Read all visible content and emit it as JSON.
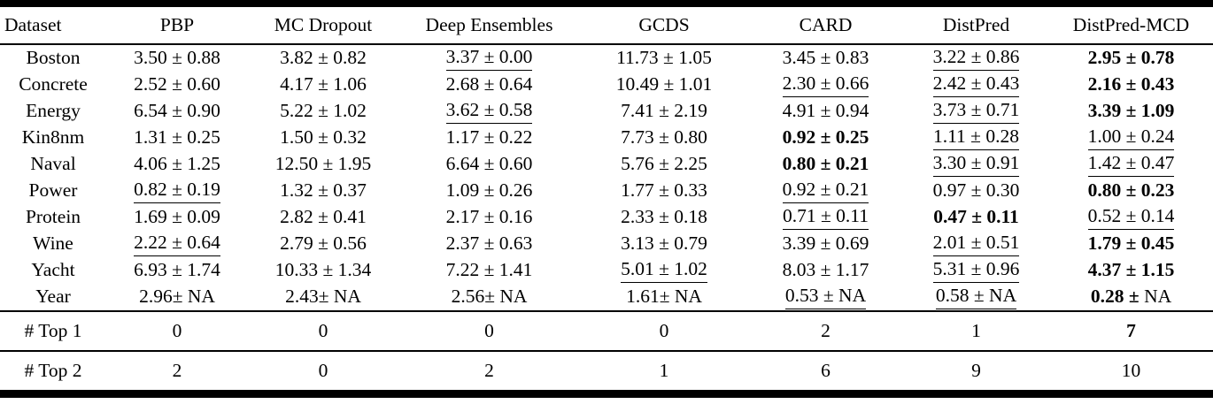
{
  "table": {
    "columns": [
      "Dataset",
      "PBP",
      "MC Dropout",
      "Deep Ensembles",
      "GCDS",
      "CARD",
      "DistPred",
      "DistPred-MCD"
    ],
    "rows": [
      {
        "dataset": "Boston",
        "cells": [
          {
            "t": "3.50 ± 0.88"
          },
          {
            "t": "3.82 ± 0.82"
          },
          {
            "t": "3.37 ± 0.00",
            "s": "u"
          },
          {
            "t": "11.73 ± 1.05"
          },
          {
            "t": "3.45 ± 0.83"
          },
          {
            "t": "3.22 ± 0.86",
            "s": "u"
          },
          {
            "t": "2.95 ± 0.78",
            "s": "b"
          }
        ]
      },
      {
        "dataset": "Concrete",
        "cells": [
          {
            "t": "2.52 ± 0.60"
          },
          {
            "t": "4.17 ± 1.06"
          },
          {
            "t": "2.68 ± 0.64"
          },
          {
            "t": "10.49 ± 1.01"
          },
          {
            "t": "2.30 ± 0.66",
            "s": "u"
          },
          {
            "t": "2.42 ± 0.43",
            "s": "u"
          },
          {
            "t": "2.16 ± 0.43",
            "s": "b"
          }
        ]
      },
      {
        "dataset": "Energy",
        "cells": [
          {
            "t": "6.54 ± 0.90"
          },
          {
            "t": "5.22 ± 1.02"
          },
          {
            "t": "3.62 ± 0.58",
            "s": "u"
          },
          {
            "t": "7.41 ± 2.19"
          },
          {
            "t": "4.91 ± 0.94"
          },
          {
            "t": "3.73 ± 0.71",
            "s": "u"
          },
          {
            "t": "3.39 ± 1.09",
            "s": "b"
          }
        ]
      },
      {
        "dataset": "Kin8nm",
        "cells": [
          {
            "t": "1.31 ± 0.25"
          },
          {
            "t": "1.50 ± 0.32"
          },
          {
            "t": "1.17 ± 0.22"
          },
          {
            "t": "7.73 ± 0.80"
          },
          {
            "t": "0.92 ± 0.25",
            "s": "b"
          },
          {
            "t": "1.11 ± 0.28",
            "s": "u"
          },
          {
            "t": "1.00 ± 0.24",
            "s": "u"
          }
        ]
      },
      {
        "dataset": "Naval",
        "cells": [
          {
            "t": "4.06 ± 1.25"
          },
          {
            "t": "12.50 ± 1.95"
          },
          {
            "t": "6.64 ± 0.60"
          },
          {
            "t": "5.76 ± 2.25"
          },
          {
            "t": "0.80 ± 0.21",
            "s": "b"
          },
          {
            "t": "3.30 ± 0.91",
            "s": "u"
          },
          {
            "t": "1.42 ± 0.47",
            "s": "u"
          }
        ]
      },
      {
        "dataset": "Power",
        "cells": [
          {
            "t": "0.82 ± 0.19",
            "s": "u"
          },
          {
            "t": "1.32 ± 0.37"
          },
          {
            "t": "1.09 ± 0.26"
          },
          {
            "t": "1.77 ± 0.33"
          },
          {
            "t": "0.92 ± 0.21",
            "s": "u"
          },
          {
            "t": "0.97 ± 0.30"
          },
          {
            "t": "0.80 ± 0.23",
            "s": "b"
          }
        ]
      },
      {
        "dataset": "Protein",
        "cells": [
          {
            "t": "1.69 ± 0.09"
          },
          {
            "t": "2.82 ± 0.41"
          },
          {
            "t": "2.17 ± 0.16"
          },
          {
            "t": "2.33 ± 0.18"
          },
          {
            "t": "0.71 ± 0.11",
            "s": "u"
          },
          {
            "t": "0.47 ± 0.11",
            "s": "b"
          },
          {
            "t": "0.52 ± 0.14",
            "s": "u"
          }
        ]
      },
      {
        "dataset": "Wine",
        "cells": [
          {
            "t": "2.22 ± 0.64",
            "s": "u"
          },
          {
            "t": "2.79 ± 0.56"
          },
          {
            "t": "2.37 ± 0.63"
          },
          {
            "t": "3.13 ± 0.79"
          },
          {
            "t": "3.39 ± 0.69"
          },
          {
            "t": "2.01 ± 0.51",
            "s": "u"
          },
          {
            "t": "1.79 ± 0.45",
            "s": "b"
          }
        ]
      },
      {
        "dataset": "Yacht",
        "cells": [
          {
            "t": "6.93 ± 1.74"
          },
          {
            "t": "10.33 ± 1.34"
          },
          {
            "t": "7.22 ± 1.41"
          },
          {
            "t": "5.01 ± 1.02",
            "s": "u"
          },
          {
            "t": "8.03 ± 1.17"
          },
          {
            "t": "5.31 ± 0.96",
            "s": "u"
          },
          {
            "t": "4.37 ± 1.15",
            "s": "b"
          }
        ]
      },
      {
        "dataset": "Year",
        "cells": [
          {
            "t": "2.96± NA"
          },
          {
            "t": "2.43± NA"
          },
          {
            "t": "2.56± NA"
          },
          {
            "t": "1.61± NA"
          },
          {
            "t": "0.53 ± NA",
            "s": "u"
          },
          {
            "t": "0.58 ± NA",
            "s": "u"
          },
          {
            "t": "0.28 ±",
            "s": "b",
            "plain": " NA"
          }
        ]
      }
    ],
    "summary_rows": [
      {
        "label": "# Top 1",
        "cells": [
          {
            "t": "0"
          },
          {
            "t": "0"
          },
          {
            "t": "0"
          },
          {
            "t": "0"
          },
          {
            "t": "2"
          },
          {
            "t": "1"
          },
          {
            "t": "7",
            "s": "b"
          }
        ]
      },
      {
        "label": "# Top 2",
        "cells": [
          {
            "t": "2"
          },
          {
            "t": "0"
          },
          {
            "t": "2"
          },
          {
            "t": "1"
          },
          {
            "t": "6"
          },
          {
            "t": "9"
          },
          {
            "t": "10"
          }
        ]
      }
    ]
  }
}
